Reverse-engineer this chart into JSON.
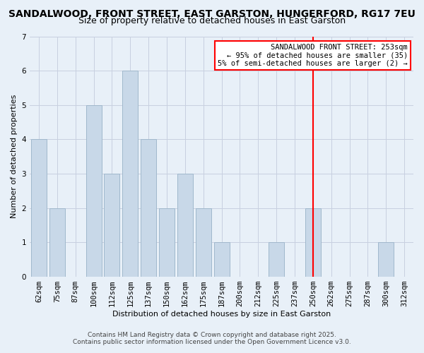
{
  "title": "SANDALWOOD, FRONT STREET, EAST GARSTON, HUNGERFORD, RG17 7EU",
  "subtitle": "Size of property relative to detached houses in East Garston",
  "xlabel": "Distribution of detached houses by size in East Garston",
  "ylabel": "Number of detached properties",
  "bin_labels": [
    "62sqm",
    "75sqm",
    "87sqm",
    "100sqm",
    "112sqm",
    "125sqm",
    "137sqm",
    "150sqm",
    "162sqm",
    "175sqm",
    "187sqm",
    "200sqm",
    "212sqm",
    "225sqm",
    "237sqm",
    "250sqm",
    "262sqm",
    "275sqm",
    "287sqm",
    "300sqm",
    "312sqm"
  ],
  "bar_heights": [
    4,
    2,
    0,
    5,
    3,
    6,
    4,
    2,
    3,
    2,
    1,
    0,
    0,
    1,
    0,
    2,
    0,
    0,
    0,
    1,
    0
  ],
  "bar_color": "#c8d8e8",
  "bar_edge_color": "#a0b8cc",
  "ylim": [
    0,
    7
  ],
  "yticks": [
    0,
    1,
    2,
    3,
    4,
    5,
    6,
    7
  ],
  "grid_color": "#c8d0e0",
  "bg_color": "#e8f0f8",
  "vline_x_index": 15,
  "vline_color": "red",
  "annotation_title": "SANDALWOOD FRONT STREET: 253sqm",
  "annotation_line1": "← 95% of detached houses are smaller (35)",
  "annotation_line2": "5% of semi-detached houses are larger (2) →",
  "annotation_box_color": "white",
  "annotation_box_edge": "red",
  "footer1": "Contains HM Land Registry data © Crown copyright and database right 2025.",
  "footer2": "Contains public sector information licensed under the Open Government Licence v3.0.",
  "title_fontsize": 10,
  "subtitle_fontsize": 9,
  "axis_label_fontsize": 8,
  "tick_fontsize": 7.5,
  "annotation_fontsize": 7.5,
  "footer_fontsize": 6.5
}
